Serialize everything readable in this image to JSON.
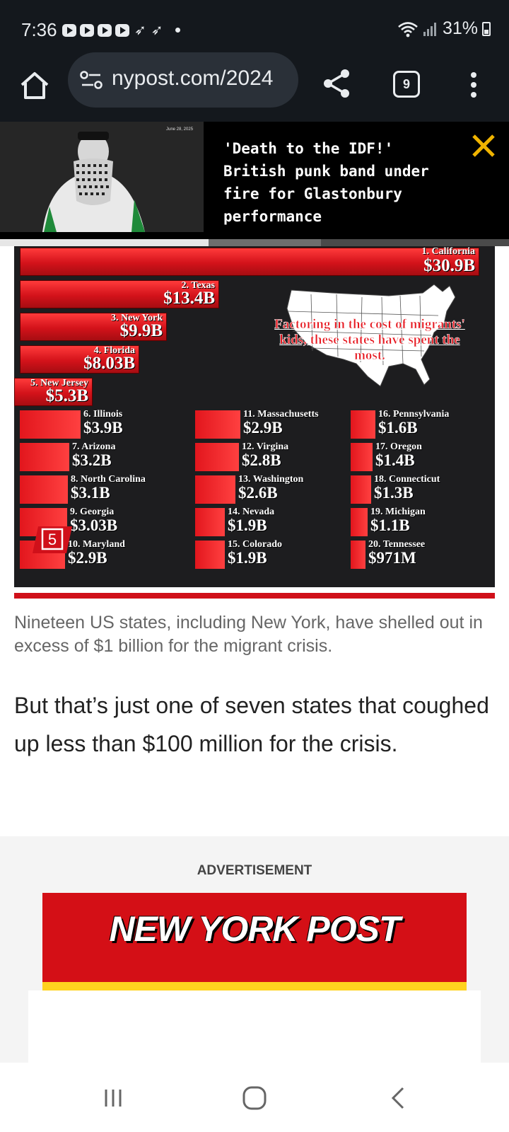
{
  "status_bar": {
    "time": "7:36",
    "notification_icons": [
      "youtube-icon",
      "youtube-icon",
      "youtube-icon",
      "youtube-icon",
      "telegram-icon",
      "telegram-icon"
    ],
    "battery": "31%",
    "wifi": "wifi-icon",
    "signal": "signal-icon"
  },
  "browser": {
    "url": "nypost.com/2024",
    "tab_count": "9"
  },
  "banner": {
    "date": "June 28, 2025",
    "title": "'Death to the IDF!' British punk band under fire for Glastonbury performance",
    "progress": 0.41
  },
  "graphic": {
    "chart_data": {
      "type": "bar",
      "title": "Factoring in the cost of migrants' kids, these states have spent the most.",
      "unit": "USD",
      "categories": [
        "1. California",
        "2. Texas",
        "3. New York",
        "4. Florida",
        "5. New Jersey",
        "6. Illinois",
        "7. Arizona",
        "8. North Carolina",
        "9. Georgia",
        "10. Maryland",
        "11. Massachusetts",
        "12. Virgina",
        "13. Washington",
        "14. Nevada",
        "15. Colorado",
        "16. Pennsylvania",
        "17. Oregon",
        "18. Connecticut",
        "19. Michigan",
        "20. Tennessee"
      ],
      "value_labels": [
        "$30.9B",
        "$13.4B",
        "$9.9B",
        "$8.03B",
        "$5.3B",
        "$3.9B",
        "$3.2B",
        "$3.1B",
        "$3.03B",
        "$2.9B",
        "$2.9B",
        "$2.8B",
        "$2.6B",
        "$1.9B",
        "$1.9B",
        "$1.6B",
        "$1.4B",
        "$1.3B",
        "$1.1B",
        "$971M"
      ],
      "values": [
        30.9,
        13.4,
        9.9,
        8.03,
        5.3,
        3.9,
        3.2,
        3.1,
        3.03,
        2.9,
        2.9,
        2.8,
        2.6,
        1.9,
        1.9,
        1.6,
        1.4,
        1.3,
        1.1,
        0.971
      ]
    },
    "slide_number": "5"
  },
  "article": {
    "caption": "Nineteen US states, including New York, have shelled out in excess of $1 billion for the migrant crisis.",
    "paragraph": "But that’s just one of seven states that coughed up less than $100 million for the crisis."
  },
  "ad": {
    "label": "ADVERTISEMENT",
    "logo_text": "NEW YORK POST"
  }
}
